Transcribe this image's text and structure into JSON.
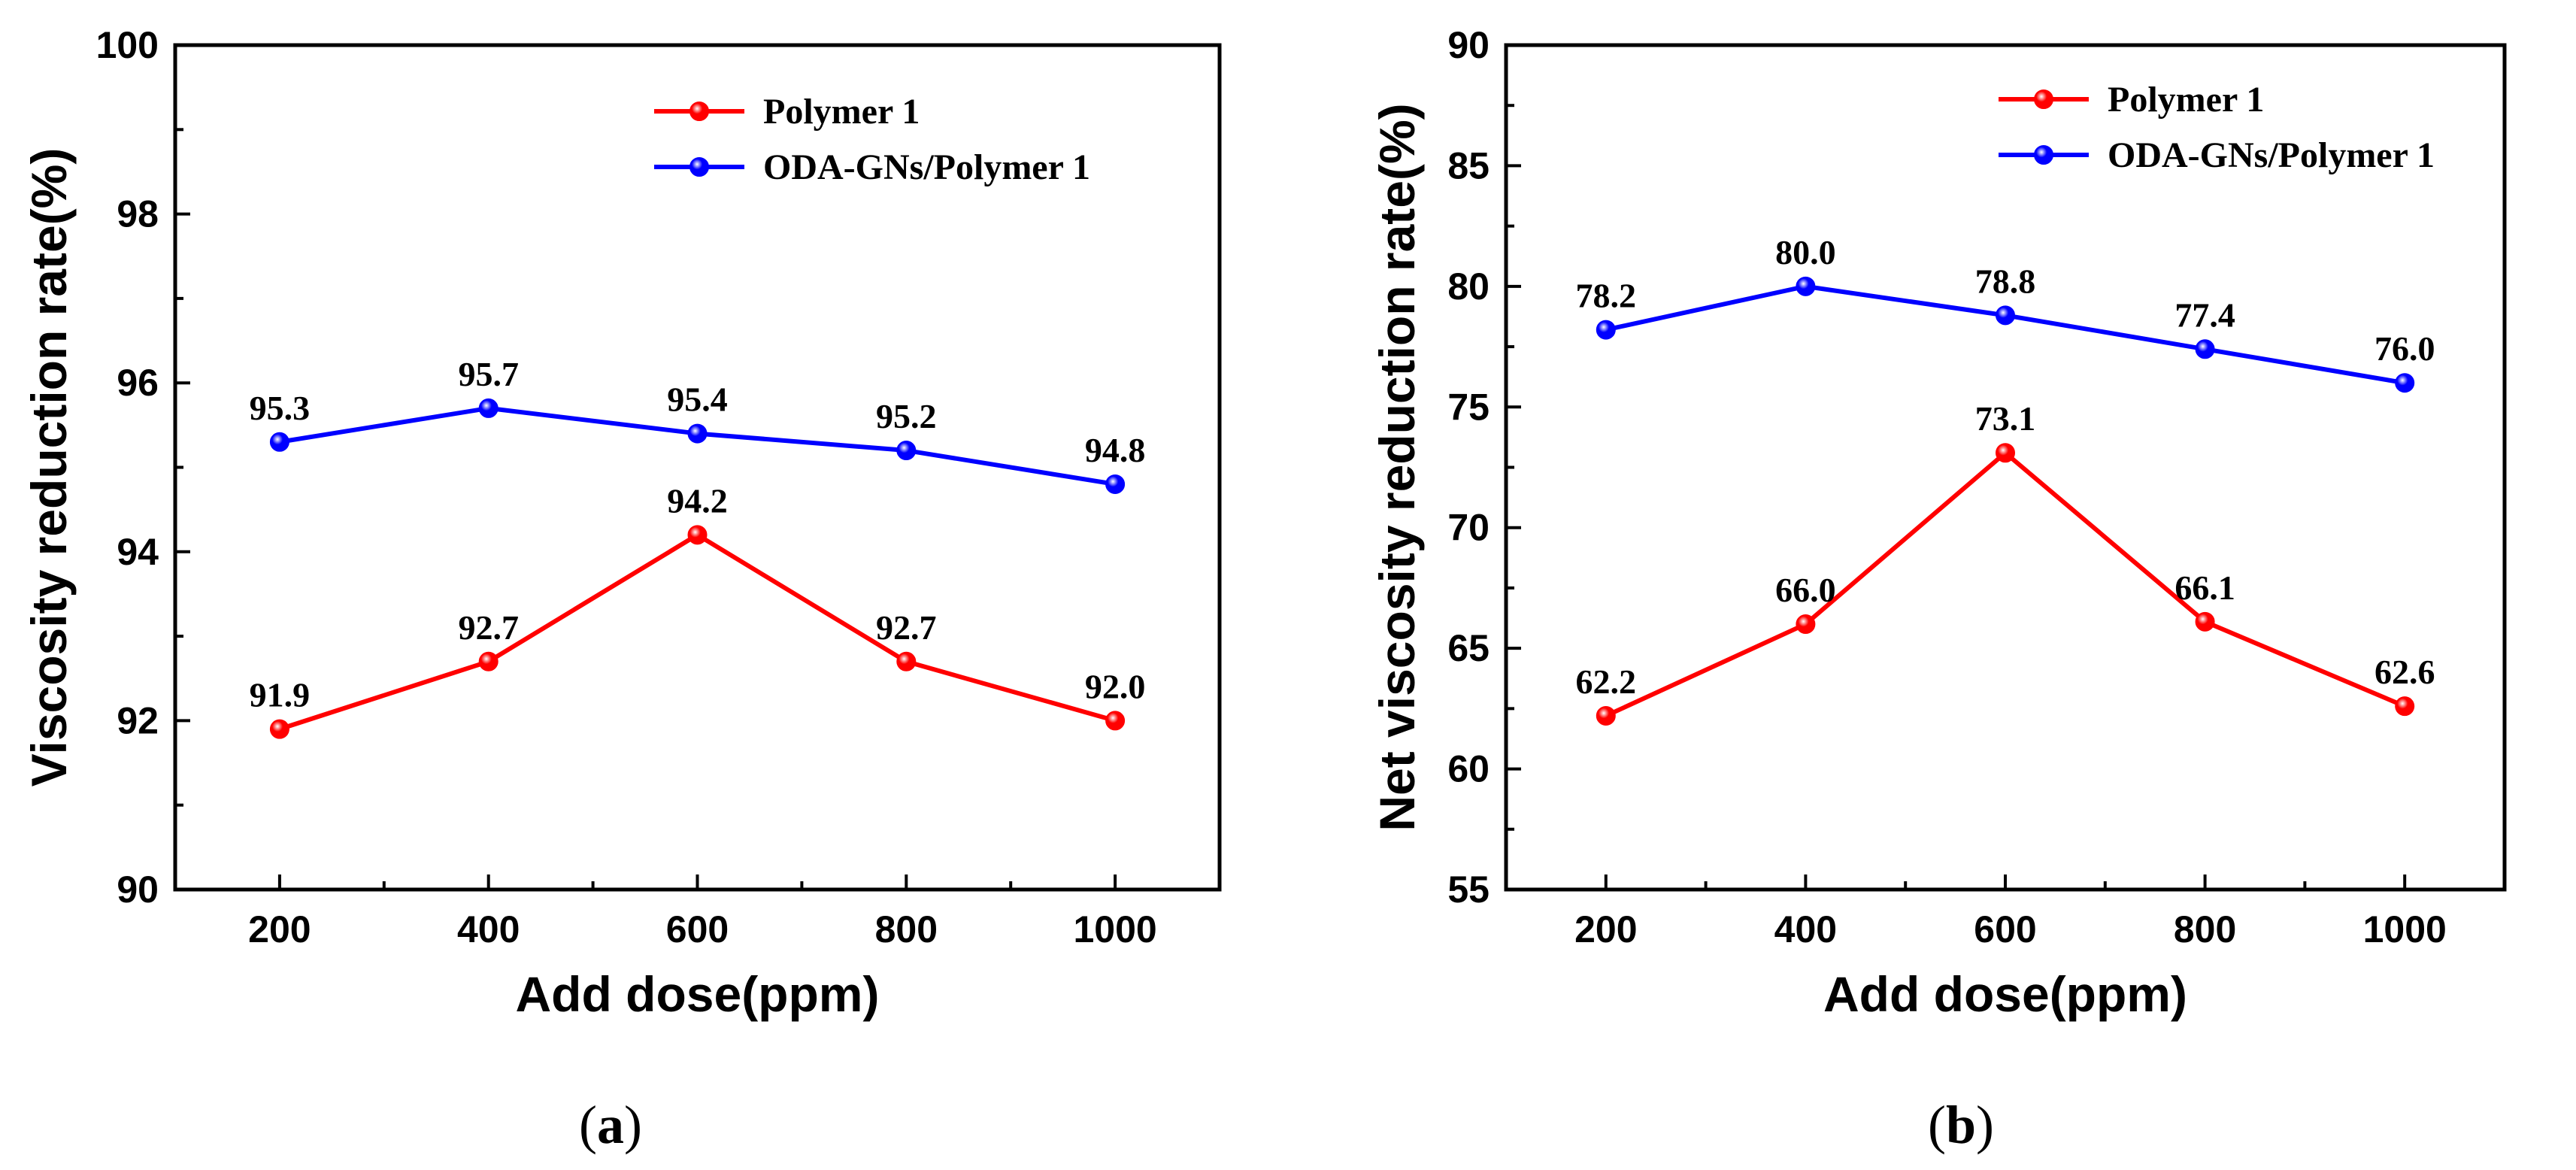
{
  "chart_data": [
    {
      "type": "line",
      "panel_label": {
        "open": "(",
        "letter": "a",
        "close": ")"
      },
      "title": "",
      "xlabel": "Add dose(ppm)",
      "ylabel": "Viscosity reduction rate(%)",
      "x": [
        200,
        400,
        600,
        800,
        1000
      ],
      "xlim": [
        100,
        1100
      ],
      "ylim": [
        90,
        100
      ],
      "x_ticks": [
        200,
        400,
        600,
        800,
        1000
      ],
      "y_ticks": [
        90,
        92,
        94,
        96,
        98,
        100
      ],
      "legend_position": "top-right",
      "grid": false,
      "series": [
        {
          "name": "Polymer 1",
          "color": "#ff0000",
          "values": [
            91.9,
            92.7,
            94.2,
            92.7,
            92.0
          ],
          "labels": [
            "91.9",
            "92.7",
            "94.2",
            "92.7",
            "92.0"
          ]
        },
        {
          "name": "ODA-GNs/Polymer 1",
          "color": "#0000ff",
          "values": [
            95.3,
            95.7,
            95.4,
            95.2,
            94.8
          ],
          "labels": [
            "95.3",
            "95.7",
            "95.4",
            "95.2",
            "94.8"
          ]
        }
      ]
    },
    {
      "type": "line",
      "panel_label": {
        "open": "(",
        "letter": "b",
        "close": ")"
      },
      "title": "",
      "xlabel": "Add dose(ppm)",
      "ylabel": "Net viscosity reduction rate(%)",
      "x": [
        200,
        400,
        600,
        800,
        1000
      ],
      "xlim": [
        100,
        1100
      ],
      "ylim": [
        55,
        90
      ],
      "x_ticks": [
        200,
        400,
        600,
        800,
        1000
      ],
      "y_ticks": [
        55,
        60,
        65,
        70,
        75,
        80,
        85,
        90
      ],
      "legend_position": "top-right",
      "grid": false,
      "series": [
        {
          "name": "Polymer 1",
          "color": "#ff0000",
          "values": [
            62.2,
            66.0,
            73.1,
            66.1,
            62.6
          ],
          "labels": [
            "62.2",
            "66.0",
            "73.1",
            "66.1",
            "62.6"
          ]
        },
        {
          "name": "ODA-GNs/Polymer 1",
          "color": "#0000ff",
          "values": [
            78.2,
            80.0,
            78.8,
            77.4,
            76.0
          ],
          "labels": [
            "78.2",
            "80.0",
            "78.8",
            "77.4",
            "76.0"
          ]
        }
      ]
    }
  ]
}
